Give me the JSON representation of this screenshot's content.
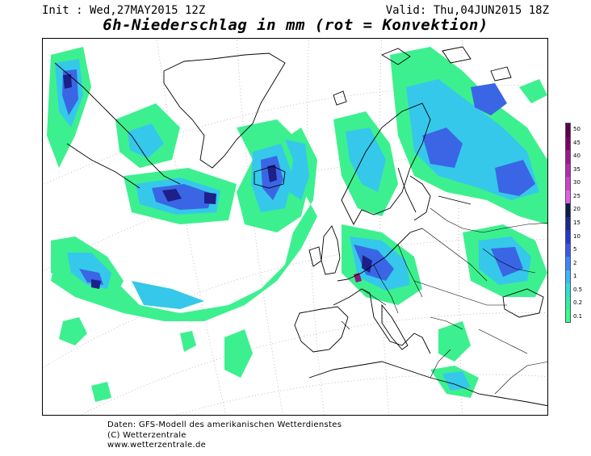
{
  "header": {
    "init": "Init : Wed,27MAY2015 12Z",
    "valid": "Valid: Thu,04JUN2015 18Z",
    "title": "6h-Niederschlag in mm (rot = Konvektion)"
  },
  "legend": {
    "levels": [
      {
        "label": "50",
        "color": "#5b0049"
      },
      {
        "label": "45",
        "color": "#7a0068"
      },
      {
        "label": "40",
        "color": "#9a1a8c"
      },
      {
        "label": "35",
        "color": "#b82ab0"
      },
      {
        "label": "30",
        "color": "#d040d0"
      },
      {
        "label": "25",
        "color": "#e060e8"
      },
      {
        "label": "20",
        "color": "#111a4a"
      },
      {
        "label": "15",
        "color": "#1d2a8a"
      },
      {
        "label": "10",
        "color": "#2838c8"
      },
      {
        "label": "5",
        "color": "#3858e8"
      },
      {
        "label": "2",
        "color": "#3a86ff"
      },
      {
        "label": "1",
        "color": "#3ab8ff"
      },
      {
        "label": "0.5",
        "color": "#2ee0d8"
      },
      {
        "label": "0.2",
        "color": "#2ef0a8"
      },
      {
        "label": "0.1",
        "color": "#38ff88"
      }
    ]
  },
  "footer": {
    "line1": "Daten: GFS-Modell des amerikanischen Wetterdienstes",
    "line2": "(C) Wetterzentrale",
    "line3": "www.wetterzentrale.de"
  }
}
